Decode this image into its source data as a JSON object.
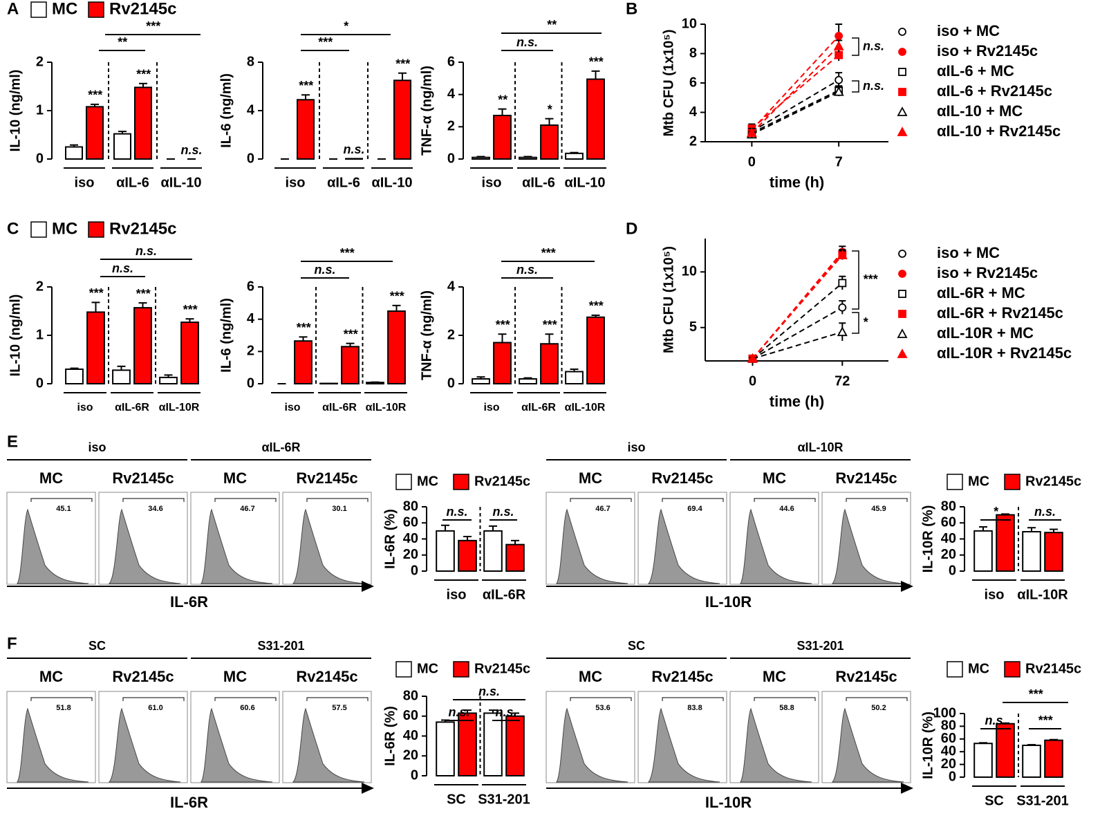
{
  "panels": [
    "A",
    "B",
    "C",
    "D",
    "E",
    "F"
  ],
  "chart_data": [
    {
      "type": "bar",
      "ylabel": "IL-10 (ng/ml)",
      "categories": [
        "iso",
        "αIL-6",
        "αIL-10"
      ],
      "ylim": [
        0,
        2
      ],
      "yticks": [
        0,
        1,
        2
      ],
      "series": [
        {
          "name": "MC",
          "color": "#ffffff",
          "values": [
            0.25,
            0.52,
            0
          ],
          "errors": [
            0.04,
            0.05,
            0
          ],
          "annotations": [
            null,
            null,
            null
          ]
        },
        {
          "name": "Rv2145c",
          "color": "#ff0000",
          "values": [
            1.08,
            1.48,
            0
          ],
          "errors": [
            0.05,
            0.08,
            0
          ],
          "annotations": [
            "***",
            "***",
            "n.s."
          ]
        }
      ],
      "brackets": [
        "***",
        "**"
      ]
    },
    {
      "type": "bar",
      "ylabel": "IL-6 (ng/ml)",
      "categories": [
        "iso",
        "αIL-6",
        "αIL-10"
      ],
      "ylim": [
        0,
        8
      ],
      "yticks": [
        0,
        4,
        8
      ],
      "series": [
        {
          "name": "MC",
          "color": "#ffffff",
          "values": [
            0,
            0,
            0
          ],
          "errors": [
            0,
            0,
            0
          ],
          "annotations": [
            null,
            null,
            null
          ]
        },
        {
          "name": "Rv2145c",
          "color": "#ff0000",
          "values": [
            4.9,
            0.03,
            6.5
          ],
          "errors": [
            0.4,
            0,
            0.6
          ],
          "annotations": [
            "***",
            "n.s.",
            "***"
          ]
        }
      ],
      "brackets": [
        "*",
        "***"
      ]
    },
    {
      "type": "bar",
      "ylabel": "TNF-α (ng/ml)",
      "categories": [
        "iso",
        "αIL-6",
        "αIL-10"
      ],
      "ylim": [
        0,
        6
      ],
      "yticks": [
        0,
        2,
        4,
        6
      ],
      "series": [
        {
          "name": "MC",
          "color": "#ffffff",
          "values": [
            0.1,
            0.1,
            0.35
          ],
          "errors": [
            0.05,
            0.05,
            0.05
          ],
          "annotations": [
            null,
            null,
            null
          ]
        },
        {
          "name": "Rv2145c",
          "color": "#ff0000",
          "values": [
            2.7,
            2.1,
            4.95
          ],
          "errors": [
            0.4,
            0.4,
            0.5
          ],
          "annotations": [
            "**",
            "*",
            "***"
          ]
        }
      ],
      "brackets": [
        "**",
        "n.s."
      ]
    },
    {
      "type": "line",
      "ylabel": "Mtb CFU (1x10⁵)",
      "xlabel": "time (h)",
      "x": [
        0,
        7
      ],
      "xlim": [
        -3.75,
        11
      ],
      "xticks": [
        0,
        7
      ],
      "ylim": [
        2,
        10
      ],
      "yticks": [
        2,
        4,
        6,
        8,
        10
      ],
      "series": [
        {
          "name": "iso + MC",
          "color": "#000000",
          "marker": "circle",
          "filled": false,
          "values": [
            2.7,
            6.2
          ],
          "errors": [
            0.2,
            0.5
          ]
        },
        {
          "name": "iso + Rv2145c",
          "color": "#ff0000",
          "marker": "circle",
          "filled": true,
          "values": [
            2.8,
            9.2
          ],
          "errors": [
            0.3,
            0.8
          ]
        },
        {
          "name": "αIL-6 + MC",
          "color": "#000000",
          "marker": "square",
          "filled": false,
          "values": [
            2.6,
            5.5
          ],
          "errors": [
            0.2,
            0.3
          ]
        },
        {
          "name": "αIL-6 + Rv2145c",
          "color": "#ff0000",
          "marker": "square",
          "filled": true,
          "values": [
            2.9,
            7.9
          ],
          "errors": [
            0.3,
            0.4
          ]
        },
        {
          "name": "αIL-10 + MC",
          "color": "#000000",
          "marker": "triangle",
          "filled": false,
          "values": [
            2.5,
            5.4
          ],
          "errors": [
            0.2,
            0.3
          ]
        },
        {
          "name": "αIL-10 + Rv2145c",
          "color": "#ff0000",
          "marker": "triangle",
          "filled": true,
          "values": [
            2.6,
            8.5
          ],
          "errors": [
            0.3,
            0.4
          ]
        }
      ],
      "brackets": [
        "n.s.",
        "n.s."
      ]
    },
    {
      "type": "bar",
      "ylabel": "IL-10 (ng/ml)",
      "categories": [
        "iso",
        "αIL-6R",
        "αIL-10R"
      ],
      "ylim": [
        0,
        2
      ],
      "yticks": [
        0,
        1,
        2
      ],
      "series": [
        {
          "name": "MC",
          "color": "#ffffff",
          "values": [
            0.3,
            0.28,
            0.13
          ],
          "errors": [
            0.02,
            0.08,
            0.05
          ],
          "annotations": [
            null,
            null,
            null
          ]
        },
        {
          "name": "Rv2145c",
          "color": "#ff0000",
          "values": [
            1.48,
            1.57,
            1.27
          ],
          "errors": [
            0.2,
            0.1,
            0.07
          ],
          "annotations": [
            "***",
            "***",
            "***"
          ]
        }
      ],
      "brackets": [
        "n.s.",
        "n.s."
      ]
    },
    {
      "type": "bar",
      "ylabel": "IL-6 (ng/ml)",
      "categories": [
        "iso",
        "αIL-6R",
        "αIL-10R"
      ],
      "ylim": [
        0,
        6
      ],
      "yticks": [
        0,
        2,
        4,
        6
      ],
      "series": [
        {
          "name": "MC",
          "color": "#ffffff",
          "values": [
            0,
            0.02,
            0.08
          ],
          "errors": [
            0,
            0,
            0.02
          ],
          "annotations": [
            null,
            null,
            null
          ]
        },
        {
          "name": "Rv2145c",
          "color": "#ff0000",
          "values": [
            2.65,
            2.3,
            4.5
          ],
          "errors": [
            0.25,
            0.2,
            0.35
          ],
          "annotations": [
            "***",
            "***",
            "***"
          ]
        }
      ],
      "brackets": [
        "***",
        "n.s."
      ]
    },
    {
      "type": "bar",
      "ylabel": "TNF-α (ng/ml)",
      "categories": [
        "iso",
        "αIL-6R",
        "αIL-10R"
      ],
      "ylim": [
        0,
        4
      ],
      "yticks": [
        0,
        2,
        4
      ],
      "series": [
        {
          "name": "MC",
          "color": "#ffffff",
          "values": [
            0.2,
            0.2,
            0.5
          ],
          "errors": [
            0.08,
            0.04,
            0.1
          ],
          "annotations": [
            null,
            null,
            null
          ]
        },
        {
          "name": "Rv2145c",
          "color": "#ff0000",
          "values": [
            1.7,
            1.65,
            2.75
          ],
          "errors": [
            0.35,
            0.4,
            0.08
          ],
          "annotations": [
            "***",
            "***",
            "***"
          ]
        }
      ],
      "brackets": [
        "***",
        "n.s."
      ]
    },
    {
      "type": "line",
      "ylabel": "Mtb CFU (1x10⁵)",
      "xlabel": "time (h)",
      "x": [
        0,
        72
      ],
      "xlim": [
        -38,
        109
      ],
      "xticks": [
        0,
        72
      ],
      "ylim": [
        2,
        13
      ],
      "yticks": [
        5,
        10
      ],
      "series": [
        {
          "name": "iso + MC",
          "color": "#000000",
          "marker": "circle",
          "filled": false,
          "values": [
            2.2,
            6.8
          ],
          "errors": [
            0.1,
            0.6
          ]
        },
        {
          "name": "iso + Rv2145c",
          "color": "#ff0000",
          "marker": "circle",
          "filled": true,
          "values": [
            2.2,
            11.8
          ],
          "errors": [
            0.1,
            0.5
          ]
        },
        {
          "name": "αIL-6R + MC",
          "color": "#000000",
          "marker": "square",
          "filled": false,
          "values": [
            2.2,
            9.0
          ],
          "errors": [
            0.1,
            0.6
          ]
        },
        {
          "name": "αIL-6R + Rv2145c",
          "color": "#ff0000",
          "marker": "square",
          "filled": true,
          "values": [
            2.2,
            11.6
          ],
          "errors": [
            0.1,
            0.4
          ]
        },
        {
          "name": "αIL-10R + MC",
          "color": "#000000",
          "marker": "triangle",
          "filled": false,
          "values": [
            2.2,
            4.6
          ],
          "errors": [
            0.1,
            0.8
          ]
        },
        {
          "name": "αIL-10R + Rv2145c",
          "color": "#ff0000",
          "marker": "triangle",
          "filled": true,
          "values": [
            2.2,
            11.5
          ],
          "errors": [
            0.1,
            0.4
          ]
        }
      ],
      "brackets": [
        "***",
        "*"
      ]
    },
    {
      "type": "bar",
      "ylabel": "IL-6R (%)",
      "categories": [
        "iso",
        "αIL-6R"
      ],
      "ylim": [
        0,
        80
      ],
      "yticks": [
        0,
        20,
        40,
        60,
        80
      ],
      "series": [
        {
          "name": "MC",
          "color": "#ffffff",
          "values": [
            50,
            50
          ],
          "errors": [
            7,
            6
          ],
          "annotations": [
            null,
            null
          ]
        },
        {
          "name": "Rv2145c",
          "color": "#ff0000",
          "values": [
            38,
            33
          ],
          "errors": [
            5,
            5
          ],
          "annotations": [
            null,
            null
          ]
        }
      ],
      "brackets": [
        "n.s.",
        "n.s."
      ]
    },
    {
      "type": "bar",
      "ylabel": "IL-10R (%)",
      "categories": [
        "iso",
        "αIL-10R"
      ],
      "ylim": [
        0,
        80
      ],
      "yticks": [
        0,
        20,
        40,
        60,
        80
      ],
      "series": [
        {
          "name": "MC",
          "color": "#ffffff",
          "values": [
            50,
            49
          ],
          "errors": [
            5,
            5
          ],
          "annotations": [
            null,
            null
          ]
        },
        {
          "name": "Rv2145c",
          "color": "#ff0000",
          "values": [
            70,
            48
          ],
          "errors": [
            1,
            4
          ],
          "annotations": [
            null,
            null
          ]
        }
      ],
      "brackets": [
        "*",
        "n.s."
      ]
    },
    {
      "type": "bar",
      "ylabel": "IL-6R (%)",
      "categories": [
        "SC",
        "S31-201"
      ],
      "ylim": [
        0,
        80
      ],
      "yticks": [
        0,
        20,
        40,
        60,
        80
      ],
      "series": [
        {
          "name": "MC",
          "color": "#ffffff",
          "values": [
            54,
            63
          ],
          "errors": [
            2,
            3
          ],
          "annotations": [
            null,
            null
          ]
        },
        {
          "name": "Rv2145c",
          "color": "#ff0000",
          "values": [
            63,
            60
          ],
          "errors": [
            3,
            3
          ],
          "annotations": [
            null,
            null
          ]
        }
      ],
      "brackets": [
        "n.s.",
        "n.s.",
        "n.s."
      ]
    },
    {
      "type": "bar",
      "ylabel": "IL-10R (%)",
      "categories": [
        "SC",
        "S31-201"
      ],
      "ylim": [
        0,
        100
      ],
      "yticks": [
        0,
        20,
        40,
        60,
        80,
        100
      ],
      "series": [
        {
          "name": "MC",
          "color": "#ffffff",
          "values": [
            53,
            50
          ],
          "errors": [
            1,
            1
          ],
          "annotations": [
            null,
            null
          ]
        },
        {
          "name": "Rv2145c",
          "color": "#ff0000",
          "values": [
            84,
            58
          ],
          "errors": [
            1,
            1
          ],
          "annotations": [
            null,
            null
          ]
        }
      ],
      "brackets": [
        "***",
        "n.s.",
        "***"
      ]
    }
  ],
  "flow": [
    {
      "axis_label": "IL-6R",
      "groups": [
        {
          "name": "iso",
          "samples": [
            {
              "name": "MC",
              "gate": "45.1"
            },
            {
              "name": "Rv2145c",
              "gate": "34.6"
            }
          ]
        },
        {
          "name": "αIL-6R",
          "samples": [
            {
              "name": "MC",
              "gate": "46.7"
            },
            {
              "name": "Rv2145c",
              "gate": "30.1"
            }
          ]
        }
      ]
    },
    {
      "axis_label": "IL-10R",
      "groups": [
        {
          "name": "iso",
          "samples": [
            {
              "name": "MC",
              "gate": "46.7"
            },
            {
              "name": "Rv2145c",
              "gate": "69.4"
            }
          ]
        },
        {
          "name": "αIL-10R",
          "samples": [
            {
              "name": "MC",
              "gate": "44.6"
            },
            {
              "name": "Rv2145c",
              "gate": "45.9"
            }
          ]
        }
      ]
    },
    {
      "axis_label": "IL-6R",
      "groups": [
        {
          "name": "SC",
          "samples": [
            {
              "name": "MC",
              "gate": "51.8"
            },
            {
              "name": "Rv2145c",
              "gate": "61.0"
            }
          ]
        },
        {
          "name": "S31-201",
          "samples": [
            {
              "name": "MC",
              "gate": "60.6"
            },
            {
              "name": "Rv2145c",
              "gate": "57.5"
            }
          ]
        }
      ]
    },
    {
      "axis_label": "IL-10R",
      "groups": [
        {
          "name": "SC",
          "samples": [
            {
              "name": "MC",
              "gate": "53.6"
            },
            {
              "name": "Rv2145c",
              "gate": "83.8"
            }
          ]
        },
        {
          "name": "S31-201",
          "samples": [
            {
              "name": "MC",
              "gate": "58.8"
            },
            {
              "name": "Rv2145c",
              "gate": "50.2"
            }
          ]
        }
      ]
    }
  ]
}
